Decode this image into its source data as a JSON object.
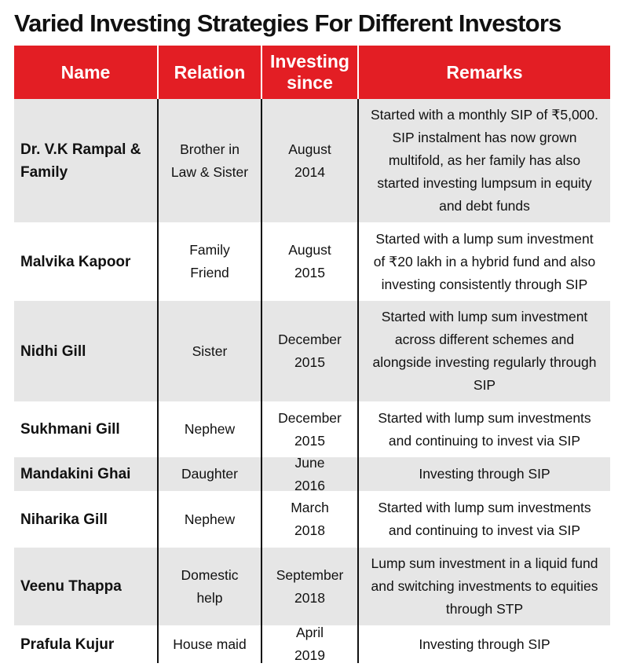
{
  "title": "Varied Investing Strategies For Different Investors",
  "table": {
    "header": [
      "Name",
      "Relation",
      "Investing since",
      "Remarks"
    ],
    "rows": [
      [
        "Dr. V.K Rampal & Family",
        "Brother in Law & Sister",
        "August 2014",
        "Started with a monthly SIP of ₹5,000. SIP instalment has now grown multifold, as her family has also started investing lumpsum in equity and debt funds"
      ],
      [
        "Malvika Kapoor",
        "Family Friend",
        "August 2015",
        "Started with a lump sum investment of ₹20 lakh in a hybrid fund and also investing consistently through SIP"
      ],
      [
        "Nidhi Gill",
        "Sister",
        "December 2015",
        "Started with lump sum investment across different schemes and alongside investing regularly through SIP"
      ],
      [
        "Sukhmani Gill",
        "Nephew",
        "December 2015",
        "Started with lump sum investments and continuing to invest via SIP"
      ],
      [
        "Mandakini Ghai",
        "Daughter",
        "June 2016",
        "Investing through SIP"
      ],
      [
        "Niharika Gill",
        "Nephew",
        "March 2018",
        "Started with lump sum investments and continuing to invest via SIP"
      ],
      [
        "Veenu Thappa",
        "Domestic help",
        "September 2018",
        "Lump sum investment in a liquid fund and switching investments to equities through STP"
      ],
      [
        "Prafula Kujur",
        "House maid",
        "April 2019",
        "Investing through SIP"
      ]
    ]
  }
}
